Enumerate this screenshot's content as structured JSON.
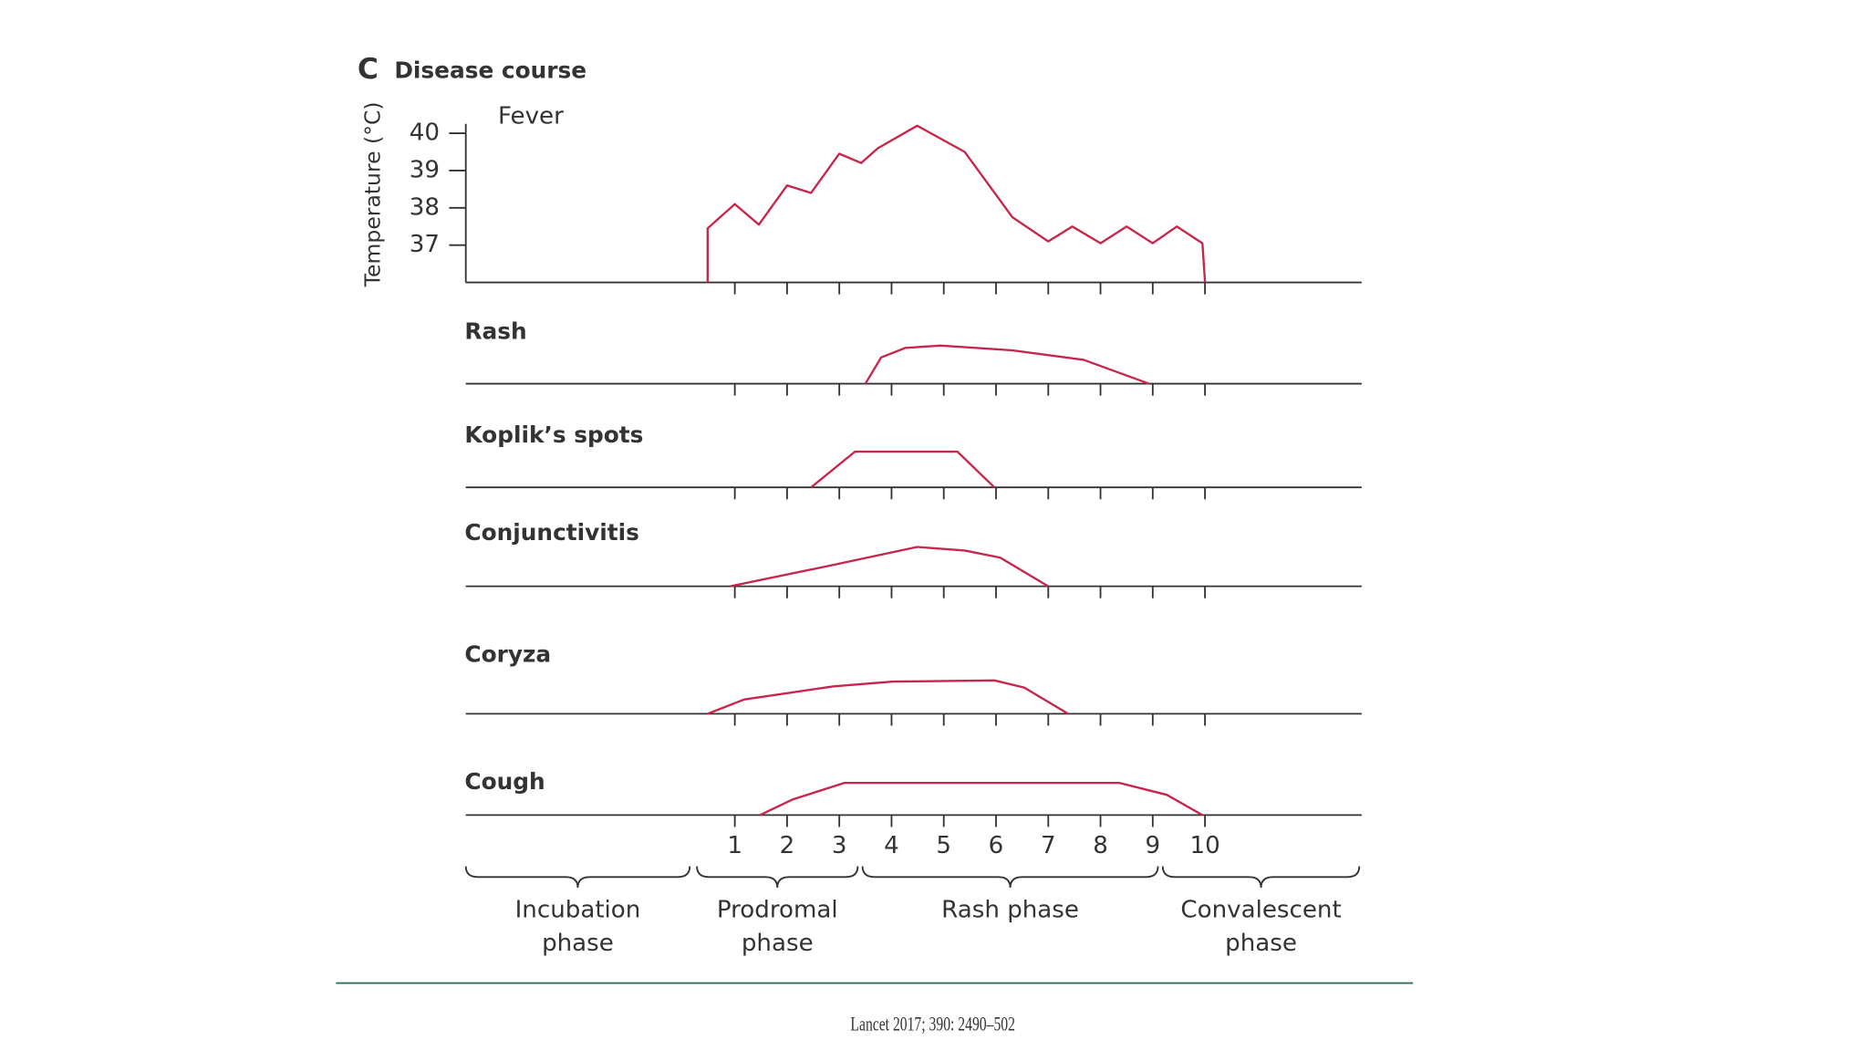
{
  "figure": {
    "panel_label": "C",
    "title": "Disease course",
    "source": "Lancet 2017; 390: 2490–502"
  },
  "phases": [
    {
      "lines": [
        "Incubation",
        "phase"
      ]
    },
    {
      "lines": [
        "Prodromal",
        "phase"
      ]
    },
    {
      "lines": [
        "Rash phase"
      ]
    },
    {
      "lines": [
        "Convalescent",
        "phase"
      ]
    }
  ],
  "chart_data": [
    {
      "type": "line",
      "title": "Fever",
      "y_label": "Temperature (°C)",
      "color": "#c8254a",
      "x": [
        0.48,
        0.48,
        1,
        1.46,
        2,
        2.46,
        3,
        3.42,
        3.74,
        4.49,
        5.4,
        6.31,
        7,
        7.46,
        8,
        8.5,
        9,
        9.46,
        9.95,
        10
      ],
      "values": [
        36,
        37.45,
        38.1,
        37.55,
        38.6,
        38.4,
        39.45,
        39.2,
        39.6,
        40.2,
        39.5,
        37.75,
        37.1,
        37.5,
        37.05,
        37.5,
        37.05,
        37.5,
        37.05,
        36
      ],
      "xlim": [
        -4.15,
        13
      ],
      "xticks": [
        1,
        2,
        3,
        4,
        5,
        6,
        7,
        8,
        9,
        10
      ],
      "ylim": [
        36,
        40.25
      ],
      "yticks": [
        37,
        38,
        39,
        40
      ]
    },
    {
      "type": "line",
      "title": "Rash",
      "color": "#c8254a",
      "x": [
        3.5,
        3.8,
        4.26,
        4.94,
        6.31,
        7.68,
        8.93
      ],
      "values": [
        0,
        22,
        30,
        32,
        28,
        20,
        0
      ],
      "xlim": [
        -4.15,
        13
      ],
      "xticks": [
        1,
        2,
        3,
        4,
        5,
        6,
        7,
        8,
        9,
        10
      ],
      "ylim": [
        0,
        40
      ]
    },
    {
      "type": "line",
      "title": "Koplik’s spots",
      "color": "#c8254a",
      "x": [
        2.46,
        3.3,
        5.26,
        5.97
      ],
      "values": [
        0,
        30,
        30,
        0
      ],
      "xlim": [
        -4.15,
        13
      ],
      "xticks": [
        1,
        2,
        3,
        4,
        5,
        6,
        7,
        8,
        9,
        10
      ],
      "ylim": [
        0,
        40
      ]
    },
    {
      "type": "line",
      "title": "Conjunctivitis",
      "color": "#c8254a",
      "x": [
        0.91,
        2.89,
        4.49,
        5.4,
        6.08,
        7
      ],
      "values": [
        0,
        18,
        33,
        30,
        24,
        0
      ],
      "xlim": [
        -4.15,
        13
      ],
      "xticks": [
        1,
        2,
        3,
        4,
        5,
        6,
        7,
        8,
        9,
        10
      ],
      "ylim": [
        0,
        40
      ]
    },
    {
      "type": "line",
      "title": "Coryza",
      "color": "#c8254a",
      "x": [
        0.48,
        1.18,
        2.89,
        4.03,
        5.97,
        6.54,
        7.38
      ],
      "values": [
        0,
        12,
        23,
        27,
        28,
        22,
        0
      ],
      "xlim": [
        -4.15,
        13
      ],
      "xticks": [
        1,
        2,
        3,
        4,
        5,
        6,
        7,
        8,
        9,
        10
      ],
      "ylim": [
        0,
        40
      ]
    },
    {
      "type": "line",
      "title": "Cough",
      "color": "#c8254a",
      "x": [
        1.48,
        2.1,
        3.1,
        8.36,
        9.27,
        9.95
      ],
      "values": [
        0,
        13,
        27,
        27,
        17,
        0
      ],
      "xlim": [
        -4.15,
        13
      ],
      "xticks": [
        1,
        2,
        3,
        4,
        5,
        6,
        7,
        8,
        9,
        10
      ],
      "ylim": [
        0,
        40
      ]
    }
  ]
}
